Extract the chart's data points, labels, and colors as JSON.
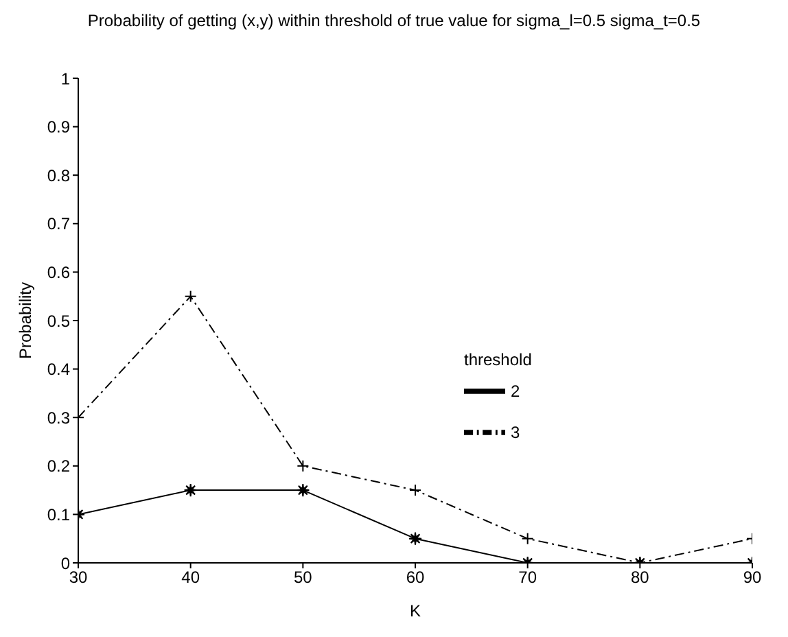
{
  "chart_data": {
    "type": "line",
    "title": "Probability of getting (x,y) within threshold of true value for sigma_l=0.5  sigma_t=0.5",
    "xlabel": "K",
    "ylabel": "Probability",
    "legend_title": "threshold",
    "x": [
      30,
      40,
      50,
      60,
      70,
      80,
      90
    ],
    "xlim": [
      30,
      90
    ],
    "xticks": [
      30,
      40,
      50,
      60,
      70,
      80,
      90
    ],
    "ylim": [
      0,
      1
    ],
    "yticks": [
      0,
      0.1,
      0.2,
      0.3,
      0.4,
      0.5,
      0.6,
      0.7,
      0.8,
      0.9,
      1
    ],
    "grid": false,
    "legend": "right",
    "series": [
      {
        "name": "2",
        "color": "#000000",
        "marker": "star",
        "line_style": "solid",
        "values": [
          0.1,
          0.15,
          0.15,
          0.05,
          0,
          0,
          0
        ]
      },
      {
        "name": "3",
        "color": "#000000",
        "marker": "cross",
        "line_style": "dashed",
        "values": [
          0.3,
          0.55,
          0.2,
          0.15,
          0.05,
          0,
          0.05
        ]
      }
    ]
  }
}
